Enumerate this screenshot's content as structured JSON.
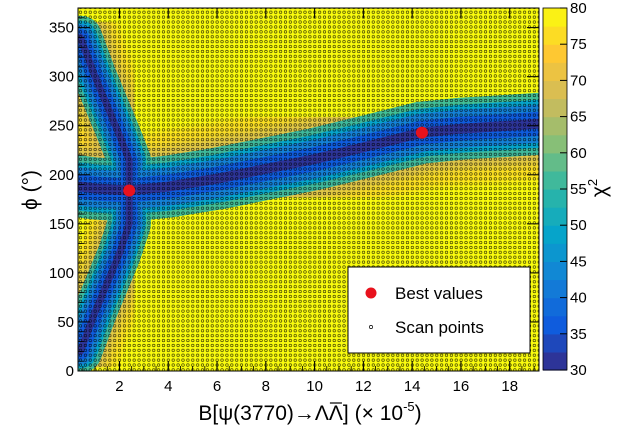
{
  "chart_data": {
    "type": "heatmap",
    "title": "",
    "xlabel": {
      "main": "B[ψ(3770)→ΛΛ] (× 10",
      "exponent": "-5",
      "close": ")",
      "overlined": "Λ"
    },
    "ylabel": "ϕ (°)",
    "colorbar_label": {
      "base": "χ",
      "exponent": "2"
    },
    "xlim": [
      0.3,
      19.2
    ],
    "ylim": [
      0,
      370
    ],
    "zlim": [
      30,
      80
    ],
    "x_ticks": [
      2,
      4,
      6,
      8,
      10,
      12,
      14,
      16,
      18
    ],
    "y_ticks": [
      0,
      50,
      100,
      150,
      200,
      250,
      300,
      350
    ],
    "z_ticks": [
      30,
      35,
      40,
      45,
      50,
      55,
      60,
      65,
      70,
      75,
      80
    ],
    "z_tick_labels": [
      "30",
      "35",
      "40",
      "45",
      "50",
      "55",
      "60",
      "65",
      "70",
      "75",
      "80"
    ],
    "colorscale": [
      "#352a87",
      "#0f5cdd",
      "#1481d6",
      "#06a4ca",
      "#2eb7a4",
      "#87bf77",
      "#d1bb59",
      "#fec832",
      "#f9fb0e"
    ],
    "grid": false,
    "scan_grid": {
      "x_start": 0.4,
      "x_step": 0.2,
      "y_start": 5,
      "y_step": 5
    },
    "best_values": [
      {
        "x": 2.4,
        "y": 184
      },
      {
        "x": 14.4,
        "y": 243
      }
    ],
    "valley_curve": {
      "description": "chi2 minimum valley",
      "points": [
        [
          0.4,
          188
        ],
        [
          1.0,
          186
        ],
        [
          2.4,
          184
        ],
        [
          4,
          188
        ],
        [
          6,
          196
        ],
        [
          8,
          206
        ],
        [
          10,
          216
        ],
        [
          12,
          228
        ],
        [
          14.4,
          243
        ],
        [
          16,
          247
        ],
        [
          18,
          250
        ],
        [
          19.2,
          252
        ]
      ],
      "lower_branch": [
        [
          0.4,
          20
        ],
        [
          1.0,
          60
        ],
        [
          2.0,
          120
        ],
        [
          2.4,
          150
        ]
      ],
      "upper_branch": [
        [
          0.4,
          340
        ],
        [
          1.0,
          300
        ],
        [
          2.0,
          240
        ],
        [
          2.4,
          215
        ]
      ]
    },
    "legend": {
      "position": "bottom-right",
      "entries": [
        {
          "label": "Best values",
          "marker": "red-dot"
        },
        {
          "label": "Scan points",
          "marker": "open-circle"
        }
      ]
    }
  }
}
